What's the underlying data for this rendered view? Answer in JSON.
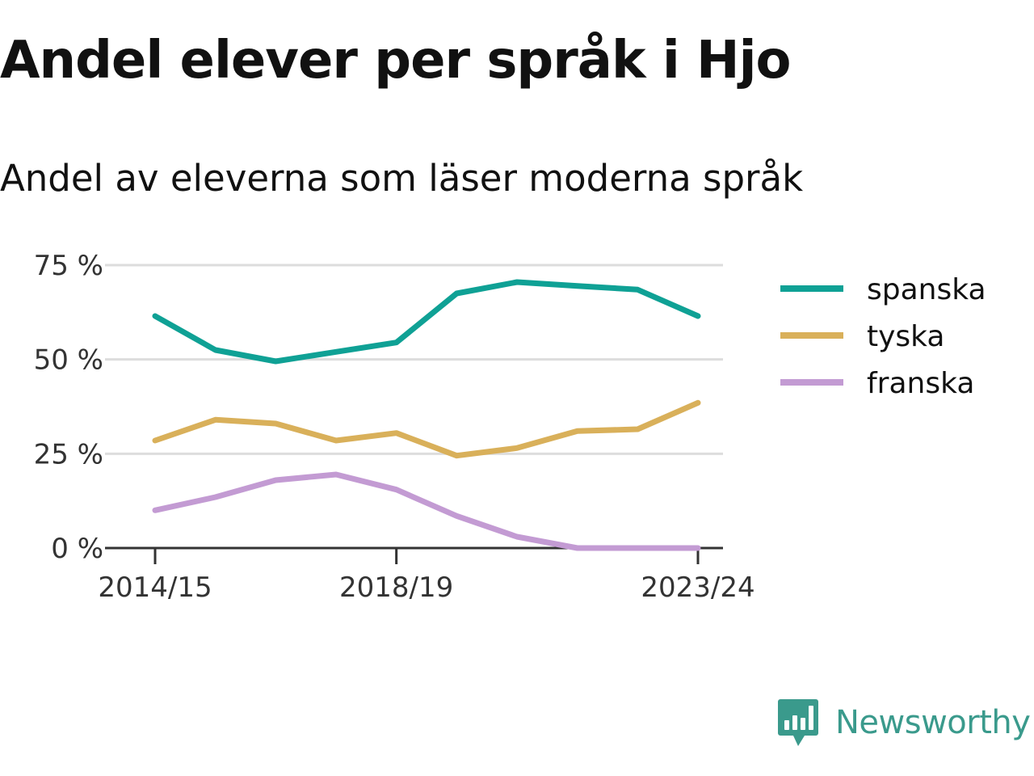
{
  "header": {
    "title": "Andel elever per språk i Hjo",
    "subtitle": "Andel av eleverna som läser moderna språk"
  },
  "brand": {
    "name": "Newsworthy",
    "color": "#3a9a8c",
    "icon": "newsworthy-chart-icon"
  },
  "chart_data": {
    "type": "line",
    "title": "Andel elever per språk i Hjo",
    "subtitle": "Andel av eleverna som läser moderna språk",
    "xlabel": "",
    "ylabel": "",
    "x": [
      "2014/15",
      "2015/16",
      "2016/17",
      "2017/18",
      "2018/19",
      "2019/20",
      "2020/21",
      "2021/22",
      "2022/23",
      "2023/24"
    ],
    "x_tick_labels": [
      "2014/15",
      "2018/19",
      "2023/24"
    ],
    "y_tick_labels": [
      "0 %",
      "25 %",
      "50 %",
      "75 %"
    ],
    "y_ticks": [
      0,
      25,
      50,
      75
    ],
    "ylim": [
      0,
      75
    ],
    "grid": true,
    "legend_position": "right",
    "series": [
      {
        "name": "spanska",
        "color": "#0fa195",
        "values": [
          61.5,
          52.5,
          49.5,
          52,
          54.5,
          67.5,
          70.5,
          69.5,
          68.5,
          61.5
        ]
      },
      {
        "name": "tyska",
        "color": "#d9b05a",
        "values": [
          28.5,
          34,
          33,
          28.5,
          30.5,
          24.5,
          26.5,
          31,
          31.5,
          38.5
        ]
      },
      {
        "name": "franska",
        "color": "#c39bd3",
        "values": [
          10,
          13.5,
          18,
          19.5,
          15.5,
          8.5,
          3,
          0,
          0,
          0
        ]
      }
    ]
  }
}
